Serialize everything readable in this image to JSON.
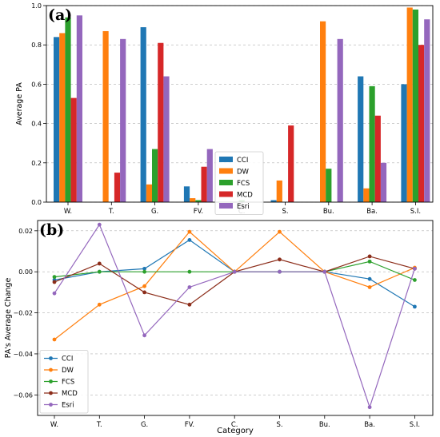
{
  "chart_data": [
    {
      "panel_label": "(a)",
      "type": "bar",
      "categories": [
        "W.",
        "T.",
        "G.",
        "FV.",
        "C.",
        "S.",
        "Bu.",
        "Ba.",
        "S.I."
      ],
      "xlabel": "",
      "ylabel": "Average PA",
      "ylim": [
        0,
        1.0
      ],
      "yticks": [
        0.0,
        0.2,
        0.4,
        0.6,
        0.8,
        1.0
      ],
      "ytick_labels": [
        "0.0",
        "0.2",
        "0.4",
        "0.6",
        "0.8",
        "1.0"
      ],
      "grid": true,
      "legend_position": "center-right",
      "series": [
        {
          "name": "CCI",
          "color": "#1f77b4",
          "values": [
            0.84,
            0.0,
            0.89,
            0.08,
            0.0,
            0.01,
            0.0,
            0.64,
            0.6
          ]
        },
        {
          "name": "DW",
          "color": "#ff7f0e",
          "values": [
            0.86,
            0.87,
            0.09,
            0.02,
            0.0,
            0.11,
            0.92,
            0.07,
            0.99
          ]
        },
        {
          "name": "FCS",
          "color": "#2ca02c",
          "values": [
            0.94,
            0.0,
            0.27,
            0.01,
            0.01,
            0.0,
            0.17,
            0.59,
            0.98
          ]
        },
        {
          "name": "MCD",
          "color": "#d62728",
          "values": [
            0.53,
            0.15,
            0.81,
            0.18,
            0.0,
            0.39,
            0.0,
            0.44,
            0.8
          ]
        },
        {
          "name": "Esri",
          "color": "#9467bd",
          "values": [
            0.95,
            0.83,
            0.64,
            0.27,
            0.0,
            0.0,
            0.83,
            0.2,
            0.93
          ]
        }
      ]
    },
    {
      "panel_label": "(b)",
      "type": "line",
      "categories": [
        "W.",
        "T.",
        "G.",
        "FV.",
        "C.",
        "S.",
        "Bu.",
        "Ba.",
        "S.I."
      ],
      "xlabel": "Category",
      "ylabel": "PA's Average Change",
      "ylim": [
        -0.07,
        0.025
      ],
      "yticks": [
        0.02,
        0.0,
        -0.02,
        -0.04,
        -0.06
      ],
      "ytick_labels": [
        "0.02",
        "0.00",
        "−0.02",
        "−0.04",
        "−0.06"
      ],
      "grid": true,
      "legend_position": "lower-left",
      "series": [
        {
          "name": "CCI",
          "color": "#1f77b4",
          "values": [
            -0.004,
            0.0,
            0.0015,
            0.0155,
            0.0,
            0.0,
            0.0,
            -0.0035,
            -0.017
          ]
        },
        {
          "name": "DW",
          "color": "#ff7f0e",
          "values": [
            -0.033,
            -0.016,
            -0.007,
            0.0195,
            0.0,
            0.0195,
            0.0,
            -0.0075,
            0.002
          ]
        },
        {
          "name": "FCS",
          "color": "#2ca02c",
          "values": [
            -0.0025,
            0.0,
            0.0,
            0.0,
            0.0,
            0.0,
            0.0,
            0.005,
            -0.004
          ]
        },
        {
          "name": "MCD",
          "color": "#8c2d1a",
          "values": [
            -0.005,
            0.004,
            -0.01,
            -0.016,
            0.0,
            0.006,
            0.0,
            0.0075,
            0.0015
          ]
        },
        {
          "name": "Esri",
          "color": "#9467bd",
          "values": [
            -0.0105,
            0.023,
            -0.031,
            -0.0075,
            0.0,
            0.0,
            0.0,
            -0.066,
            0.0015
          ]
        }
      ]
    }
  ]
}
